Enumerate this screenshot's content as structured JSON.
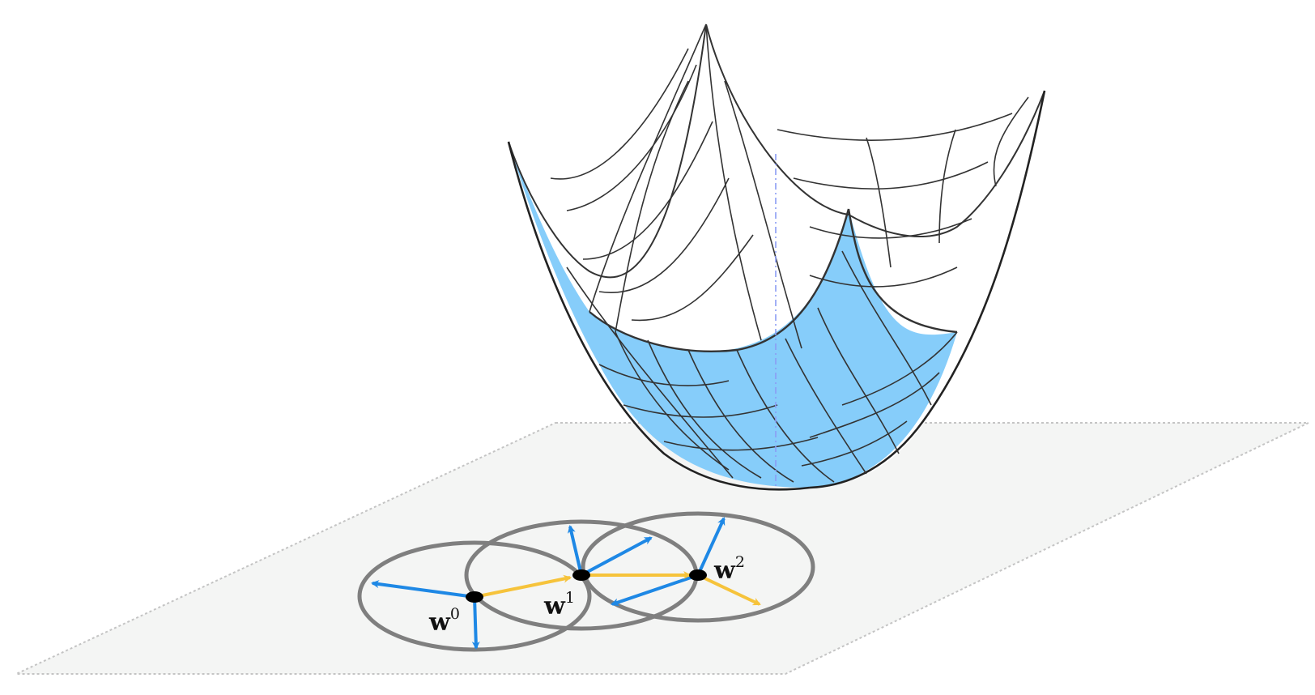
{
  "diagram": {
    "points": [
      {
        "base": "w",
        "superscript": "0"
      },
      {
        "base": "w",
        "superscript": "1"
      },
      {
        "base": "w",
        "superscript": "2"
      }
    ],
    "colors": {
      "background": "#ffffff",
      "plane_fill": "#f4f5f4",
      "plane_border": "#c4c4c4",
      "surface_front": "#86cdfa",
      "mesh_line": "#333333",
      "circle_stroke": "#7f7f7f",
      "candidate_arrow": "#1e88e5",
      "step_arrow": "#f6c33b",
      "point_fill": "#000000"
    }
  }
}
